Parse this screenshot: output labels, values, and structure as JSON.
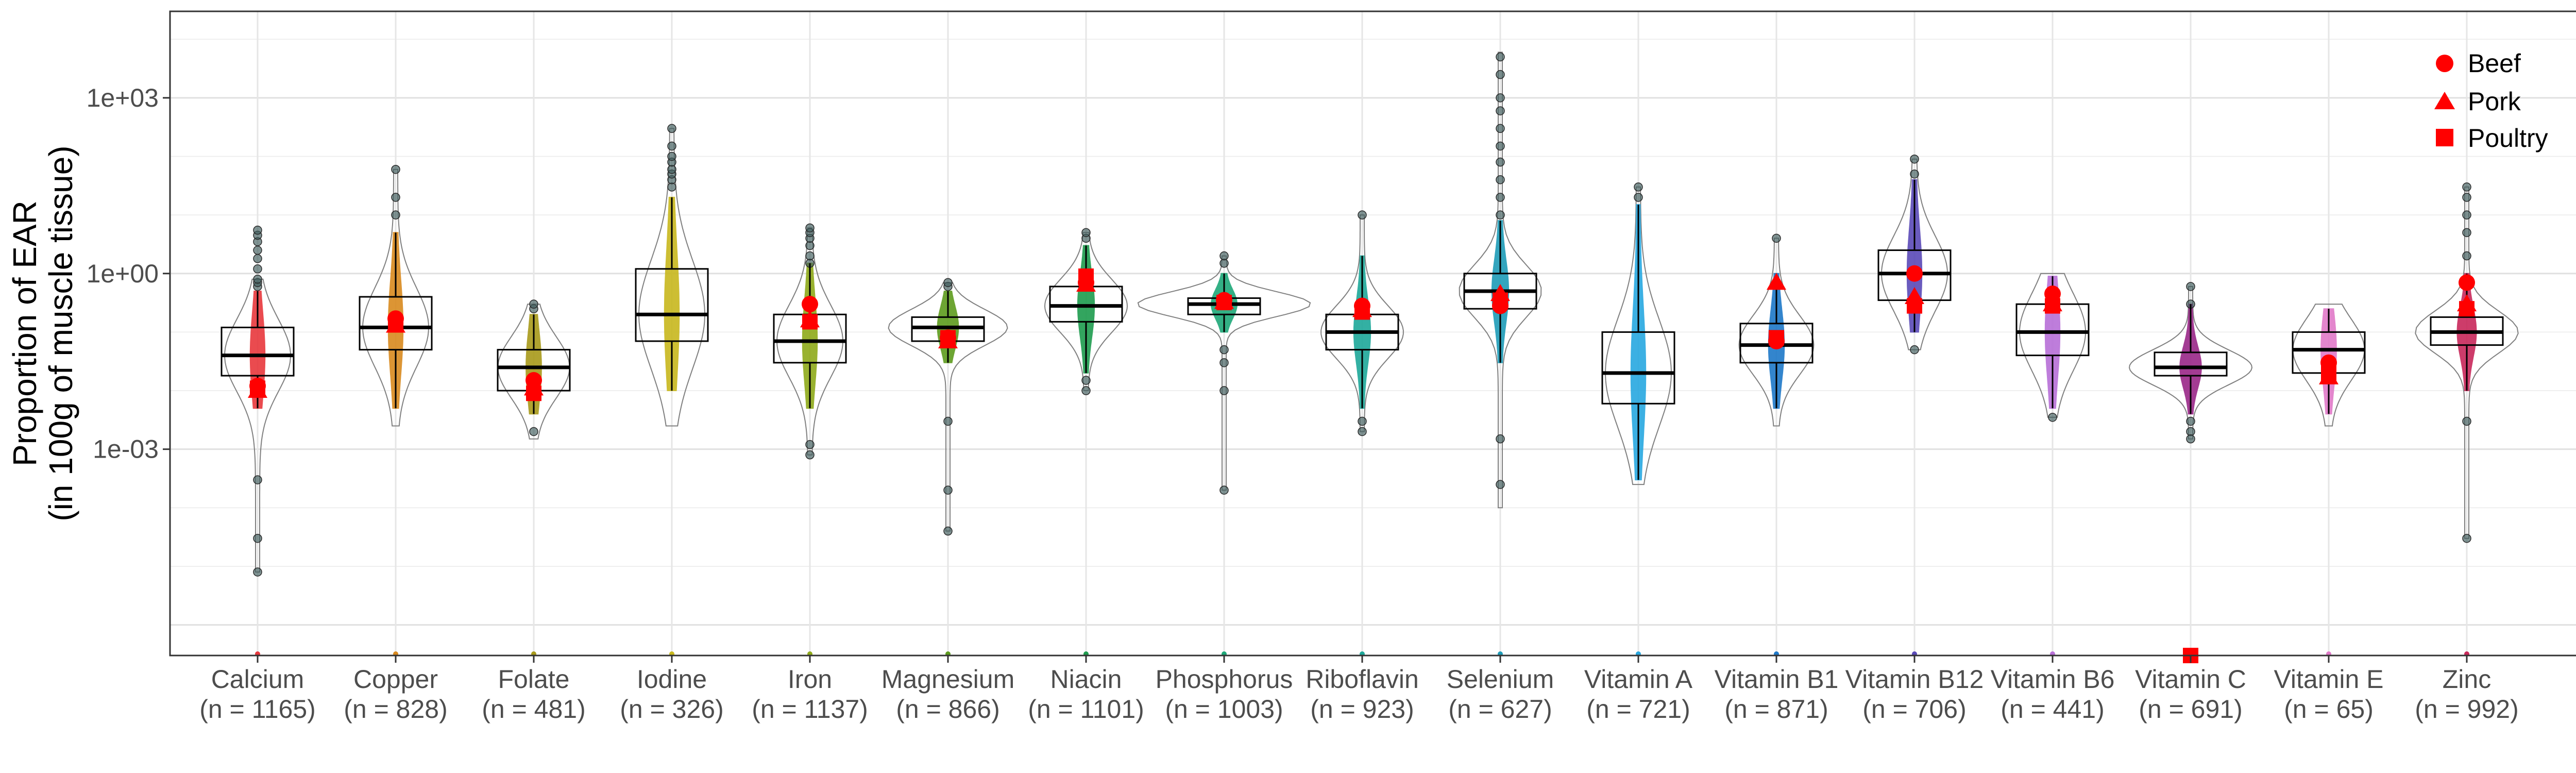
{
  "chart_data": {
    "type": "violin",
    "title": "",
    "xlabel": "",
    "ylabel": "Proportion of EAR",
    "ylabel_line2": "(in 100g of muscle tissue)",
    "y_scale": "log10",
    "y_tick_values": [
      0.001,
      1,
      1000
    ],
    "y_tick_labels": [
      "1e-03",
      "1e+00",
      "1e+03"
    ],
    "ylim": [
      3e-07,
      30000
    ],
    "grid": true,
    "legend_position": "top-right",
    "legend": [
      {
        "label": "Beef",
        "shape": "circle"
      },
      {
        "label": "Pork",
        "shape": "triangle"
      },
      {
        "label": "Poultry",
        "shape": "square"
      }
    ],
    "marker_color": "#ff0000",
    "categories": [
      {
        "name": "Calcium",
        "n_label": "(n = 1165)",
        "color": "#e8383d",
        "min": 8e-06,
        "q1": 0.018,
        "median": 0.04,
        "q3": 0.12,
        "max": 0.8,
        "wmin": 0.005,
        "wmax": 0.5,
        "beef": 0.012,
        "pork": 0.01,
        "poultry": 0.011,
        "outliers_high": [
          0.6,
          0.7,
          0.8,
          1.2,
          1.8,
          2.5,
          3.5,
          4.5,
          5.5
        ],
        "outliers_low": [
          0.0003,
          3e-05,
          8e-06
        ]
      },
      {
        "name": "Copper",
        "n_label": "(n = 828)",
        "color": "#d98a1f",
        "min": 0.0025,
        "q1": 0.05,
        "median": 0.12,
        "q3": 0.4,
        "max": 60,
        "wmin": 0.005,
        "wmax": 5,
        "beef": 0.17,
        "pork": 0.13,
        "poultry": 0.14,
        "outliers_high": [
          10,
          20,
          60
        ],
        "outliers_low": []
      },
      {
        "name": "Folate",
        "n_label": "(n = 481)",
        "color": "#a89a1a",
        "min": 0.0015,
        "q1": 0.01,
        "median": 0.025,
        "q3": 0.05,
        "max": 0.3,
        "wmin": 0.004,
        "wmax": 0.2,
        "beef": 0.015,
        "pork": 0.011,
        "poultry": 0.009,
        "outliers_high": [
          0.25,
          0.3
        ],
        "outliers_low": [
          0.002
        ]
      },
      {
        "name": "Iodine",
        "n_label": "(n = 326)",
        "color": "#c8b81e",
        "min": 0.0025,
        "q1": 0.07,
        "median": 0.2,
        "q3": 1.2,
        "max": 300,
        "wmin": 0.01,
        "wmax": 20,
        "beef": null,
        "pork": null,
        "poultry": null,
        "outliers_high": [
          30,
          40,
          50,
          60,
          80,
          100,
          150,
          300
        ],
        "outliers_low": []
      },
      {
        "name": "Iron",
        "n_label": "(n = 1137)",
        "color": "#8faa1a",
        "min": 0.0008,
        "q1": 0.03,
        "median": 0.07,
        "q3": 0.2,
        "max": 6,
        "wmin": 0.005,
        "wmax": 1.5,
        "beef": 0.3,
        "pork": 0.16,
        "poultry": 0.15,
        "outliers_high": [
          1.5,
          2,
          3,
          4,
          5,
          6
        ],
        "outliers_low": [
          0.0012,
          0.0008
        ]
      },
      {
        "name": "Magnesium",
        "n_label": "(n = 866)",
        "color": "#5e9c1e",
        "min": 4e-05,
        "q1": 0.07,
        "median": 0.12,
        "q3": 0.18,
        "max": 0.7,
        "wmin": 0.03,
        "wmax": 0.5,
        "beef": 0.08,
        "pork": 0.07,
        "poultry": 0.08,
        "outliers_high": [
          0.6,
          0.7
        ],
        "outliers_low": [
          0.003,
          0.0002,
          4e-05
        ]
      },
      {
        "name": "Niacin",
        "n_label": "(n = 1101)",
        "color": "#1e9c4e",
        "min": 0.01,
        "q1": 0.15,
        "median": 0.28,
        "q3": 0.6,
        "max": 5,
        "wmin": 0.02,
        "wmax": 3,
        "beef": 0.7,
        "pork": 0.65,
        "poultry": 0.9,
        "outliers_high": [
          4,
          5
        ],
        "outliers_low": [
          0.015,
          0.01
        ]
      },
      {
        "name": "Phosphorus",
        "n_label": "(n = 1003)",
        "color": "#1ea878",
        "min": 0.0002,
        "q1": 0.2,
        "median": 0.3,
        "q3": 0.38,
        "max": 2,
        "wmin": 0.1,
        "wmax": 1,
        "beef": 0.35,
        "pork": 0.33,
        "poultry": 0.32,
        "outliers_high": [
          1.5,
          2
        ],
        "outliers_low": [
          0.01,
          0.03,
          0.05,
          0.0002
        ]
      },
      {
        "name": "Riboflavin",
        "n_label": "(n = 923)",
        "color": "#1ea89a",
        "min": 0.002,
        "q1": 0.05,
        "median": 0.1,
        "q3": 0.2,
        "max": 10,
        "wmin": 0.005,
        "wmax": 2,
        "beef": 0.28,
        "pork": 0.24,
        "poultry": 0.22,
        "outliers_high": [
          10
        ],
        "outliers_low": [
          0.002,
          0.003
        ]
      },
      {
        "name": "Selenium",
        "n_label": "(n = 627)",
        "color": "#1e9cb8",
        "min": 0.0001,
        "q1": 0.25,
        "median": 0.5,
        "q3": 1,
        "max": 6000,
        "wmin": 0.03,
        "wmax": 8,
        "beef": 0.28,
        "pork": 0.45,
        "poultry": 0.35,
        "outliers_high": [
          10,
          20,
          40,
          80,
          150,
          300,
          600,
          1000,
          2500,
          5000
        ],
        "outliers_low": [
          0.0015,
          0.00025
        ]
      },
      {
        "name": "Vitamin A",
        "n_label": "(n = 721)",
        "color": "#28a8e0",
        "min": 0.00025,
        "q1": 0.006,
        "median": 0.02,
        "q3": 0.1,
        "max": 30,
        "wmin": 0.0003,
        "wmax": 15,
        "beef": null,
        "pork": null,
        "poultry": null,
        "outliers_high": [
          20,
          30
        ],
        "outliers_low": []
      },
      {
        "name": "Vitamin B1",
        "n_label": "(n = 871)",
        "color": "#1e78c8",
        "min": 0.0025,
        "q1": 0.03,
        "median": 0.06,
        "q3": 0.14,
        "max": 4,
        "wmin": 0.005,
        "wmax": 1,
        "beef": 0.07,
        "pork": 0.7,
        "poultry": 0.08,
        "outliers_high": [
          4
        ],
        "outliers_low": []
      },
      {
        "name": "Vitamin B12",
        "n_label": "(n = 706)",
        "color": "#5a4ab8",
        "min": 0.05,
        "q1": 0.35,
        "median": 1,
        "q3": 2.5,
        "max": 90,
        "wmin": 0.1,
        "wmax": 40,
        "beef": 1,
        "pork": 0.4,
        "poultry": 0.28,
        "outliers_high": [
          50,
          90
        ],
        "outliers_low": [
          0.05
        ]
      },
      {
        "name": "Vitamin B6",
        "n_label": "(n = 441)",
        "color": "#b870d8",
        "min": 0.0035,
        "q1": 0.04,
        "median": 0.1,
        "q3": 0.3,
        "max": 1,
        "wmin": 0.005,
        "wmax": 0.9,
        "beef": 0.45,
        "pork": 0.3,
        "poultry": 0.28,
        "outliers_high": [],
        "outliers_low": [
          0.0035
        ]
      },
      {
        "name": "Vitamin C",
        "n_label": "(n = 691)",
        "color": "#9a2888",
        "min": 0.0015,
        "q1": 0.018,
        "median": 0.025,
        "q3": 0.045,
        "max": 0.6,
        "wmin": 0.004,
        "wmax": 0.3,
        "beef": null,
        "pork": null,
        "poultry": 3e-07,
        "outliers_high": [
          0.3,
          0.6
        ],
        "outliers_low": [
          0.003,
          0.002,
          0.0015
        ]
      },
      {
        "name": "Vitamin E",
        "n_label": "(n = 65)",
        "color": "#e07ac8",
        "min": 0.0025,
        "q1": 0.02,
        "median": 0.05,
        "q3": 0.1,
        "max": 0.3,
        "wmin": 0.004,
        "wmax": 0.25,
        "beef": 0.03,
        "pork": 0.017,
        "poultry": 0.02,
        "outliers_high": [],
        "outliers_low": []
      },
      {
        "name": "Zinc",
        "n_label": "(n = 992)",
        "color": "#c8285a",
        "min": 3e-05,
        "q1": 0.06,
        "median": 0.1,
        "q3": 0.18,
        "max": 30,
        "wmin": 0.01,
        "wmax": 1,
        "beef": 0.7,
        "pork": 0.3,
        "poultry": 0.25,
        "outliers_high": [
          2,
          5,
          10,
          20,
          30
        ],
        "outliers_low": [
          0.003,
          3e-05
        ]
      }
    ]
  }
}
